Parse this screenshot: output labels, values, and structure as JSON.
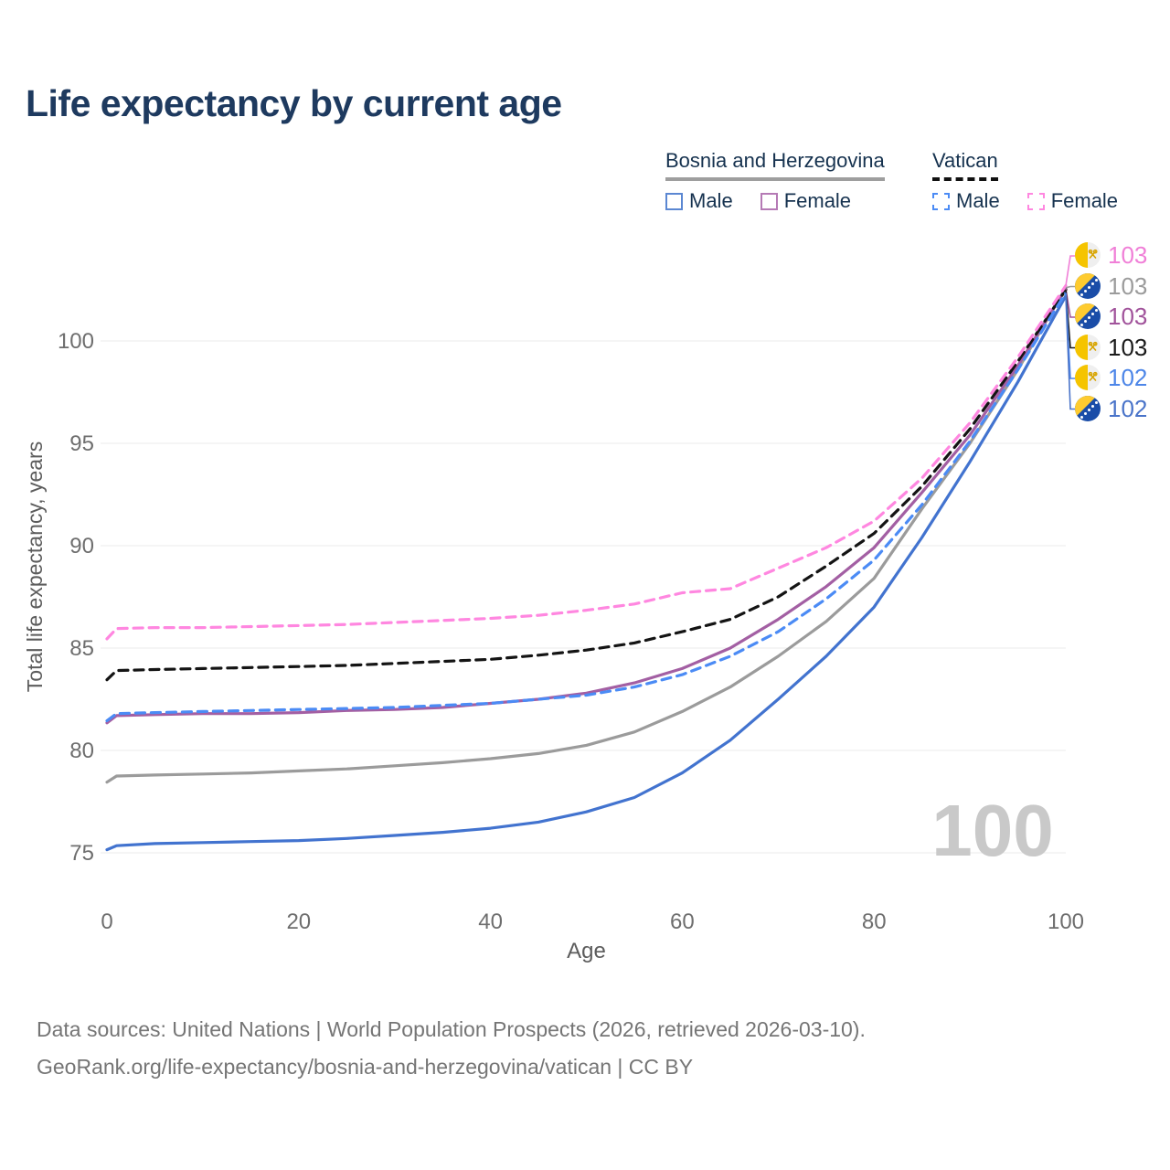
{
  "title": "Life expectancy by current age",
  "legend": {
    "groups": [
      {
        "country": "Bosnia and Herzegovina",
        "underline_style": "solid",
        "underline_color": "#9e9e9e",
        "items": [
          {
            "label": "Male",
            "swatch_style": "solid",
            "color": "#5b87d2"
          },
          {
            "label": "Female",
            "swatch_style": "solid",
            "color": "#b57ab5"
          }
        ]
      },
      {
        "country": "Vatican",
        "underline_style": "dashed",
        "underline_color": "#111111",
        "items": [
          {
            "label": "Male",
            "swatch_style": "dashed",
            "color": "#4b8bf5"
          },
          {
            "label": "Female",
            "swatch_style": "dashed",
            "color": "#ff87e0"
          }
        ]
      }
    ]
  },
  "chart_data": {
    "type": "line",
    "title": "Life expectancy by current age",
    "xlabel": "Age",
    "ylabel": "Total life expectancy, years",
    "xlim": [
      0,
      100
    ],
    "ylim": [
      73.5,
      104
    ],
    "x_ticks": [
      0,
      20,
      40,
      60,
      80,
      100
    ],
    "y_ticks": [
      75,
      80,
      85,
      90,
      95,
      100
    ],
    "grid": "horizontal",
    "legend_position": "top-right",
    "watermark": "100",
    "x": [
      0,
      1,
      5,
      10,
      15,
      20,
      25,
      30,
      35,
      40,
      45,
      50,
      55,
      60,
      65,
      70,
      75,
      80,
      85,
      90,
      95,
      100
    ],
    "series": [
      {
        "name": "Bosnia and Herzegovina",
        "sex": "all",
        "country": "bosnia",
        "style": "solid",
        "color": "#9b9b9b",
        "values": [
          78.45,
          78.75,
          78.8,
          78.85,
          78.9,
          79.0,
          79.1,
          79.25,
          79.4,
          79.6,
          79.85,
          80.25,
          80.9,
          81.9,
          83.1,
          84.6,
          86.3,
          88.4,
          91.8,
          95.0,
          98.6,
          102.6
        ]
      },
      {
        "name": "Bosnia and Herzegovina Female",
        "sex": "female",
        "country": "bosnia",
        "style": "solid",
        "color": "#a35fa3",
        "values": [
          81.35,
          81.7,
          81.75,
          81.8,
          81.8,
          81.85,
          81.95,
          82.0,
          82.1,
          82.3,
          82.5,
          82.8,
          83.3,
          84.0,
          85.0,
          86.4,
          88.0,
          89.9,
          92.6,
          95.4,
          98.8,
          102.55
        ]
      },
      {
        "name": "Bosnia and Herzegovina Male",
        "sex": "male",
        "country": "bosnia",
        "style": "solid",
        "color": "#4273cf",
        "values": [
          75.15,
          75.35,
          75.45,
          75.5,
          75.55,
          75.6,
          75.7,
          75.85,
          76.0,
          76.2,
          76.5,
          77.0,
          77.7,
          78.9,
          80.5,
          82.5,
          84.6,
          87.0,
          90.4,
          94.1,
          98.0,
          102.2
        ]
      },
      {
        "name": "Vatican",
        "sex": "all",
        "country": "vatican",
        "style": "dashed",
        "color": "#141414",
        "values": [
          83.45,
          83.9,
          83.95,
          84.0,
          84.05,
          84.1,
          84.15,
          84.25,
          84.35,
          84.45,
          84.65,
          84.9,
          85.25,
          85.8,
          86.4,
          87.5,
          89.0,
          90.6,
          92.9,
          95.7,
          99.0,
          102.5
        ]
      },
      {
        "name": "Vatican Male",
        "sex": "male",
        "country": "vatican",
        "style": "dashed",
        "color": "#4b8bf5",
        "values": [
          81.45,
          81.8,
          81.85,
          81.9,
          81.95,
          82.0,
          82.05,
          82.1,
          82.2,
          82.3,
          82.5,
          82.7,
          83.1,
          83.7,
          84.6,
          85.8,
          87.4,
          89.3,
          92.0,
          95.1,
          98.6,
          102.35
        ]
      },
      {
        "name": "Vatican Female",
        "sex": "female",
        "country": "vatican",
        "style": "dashed",
        "color": "#ff87e0",
        "values": [
          85.45,
          85.95,
          86.0,
          86.0,
          86.05,
          86.1,
          86.15,
          86.25,
          86.35,
          86.45,
          86.6,
          86.85,
          87.15,
          87.7,
          87.9,
          88.9,
          89.9,
          91.2,
          93.3,
          96.0,
          99.2,
          102.7
        ]
      }
    ],
    "end_labels": [
      {
        "series": "Vatican Female",
        "country": "vatican",
        "value": "103",
        "color": "#f07fd7",
        "end_value": 102.7
      },
      {
        "series": "Bosnia and Herzegovina",
        "country": "bosnia",
        "value": "103",
        "color": "#9b9b9b",
        "end_value": 102.6
      },
      {
        "series": "Bosnia and Herzegovina Female",
        "country": "bosnia",
        "value": "103",
        "color": "#a1539b",
        "end_value": 102.55
      },
      {
        "series": "Vatican",
        "country": "vatican",
        "value": "103",
        "color": "#1a1a1a",
        "end_value": 102.5
      },
      {
        "series": "Vatican Male",
        "country": "vatican",
        "value": "102",
        "color": "#4d86e8",
        "end_value": 102.35
      },
      {
        "series": "Bosnia and Herzegovina Male",
        "country": "bosnia",
        "value": "102",
        "color": "#4a74c9",
        "end_value": 102.2
      }
    ]
  },
  "footer": {
    "line1": "Data sources: United Nations | World Population Prospects (2026, retrieved 2026-03-10).",
    "line2": "GeoRank.org/life-expectancy/bosnia-and-herzegovina/vatican | CC BY"
  }
}
